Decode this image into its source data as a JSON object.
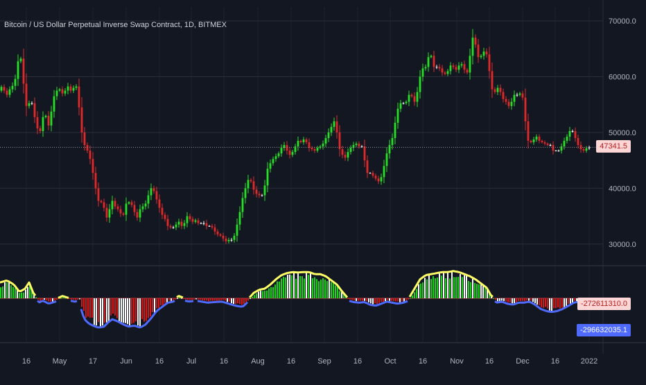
{
  "header": {
    "symbol_title": "Bitcoin / US Dollar Perpetual Inverse Swap Contract, 1D, BITMEX"
  },
  "colors": {
    "background": "#131722",
    "grid": "#2a2e39",
    "text": "#b2b5be",
    "candle_up": "#26e026",
    "candle_down": "#e02a2a",
    "candle_neutral": "#ffffff",
    "osc_upper_line": "#ffff66",
    "osc_lower_line": "#4f6bff",
    "osc_bar_pos": "#19d419",
    "osc_bar_neg": "#d41919",
    "osc_bar_light": "#ffffff",
    "current_price_line": "#9598a1",
    "current_price_label_bg": "#ffd6d6",
    "current_price_label_text": "#b71c1c",
    "osc_label_1_bg": "#ffd6d6",
    "osc_label_1_text": "#b71c1c",
    "osc_label_2_bg": "#4f6bff",
    "osc_label_2_text": "#ffffff"
  },
  "chart_data": {
    "type": "candlestick",
    "title": "Bitcoin / US Dollar Perpetual Inverse Swap Contract, 1D, BITMEX",
    "x_ticks": [
      "16",
      "May",
      "17",
      "Jun",
      "16",
      "Jul",
      "16",
      "Aug",
      "16",
      "Sep",
      "16",
      "Oct",
      "16",
      "Nov",
      "16",
      "Dec",
      "16",
      "2022"
    ],
    "y_ticks": [
      70000,
      60000,
      50000,
      40000,
      30000
    ],
    "y_tick_labels": [
      "70000.0",
      "60000.0",
      "50000.0",
      "40000.0",
      "30000.0"
    ],
    "ylim": [
      26500,
      72500
    ],
    "current_price": 47341.5,
    "current_price_label": "47341.5",
    "price_anchors": [
      [
        0,
        57500
      ],
      [
        3,
        58000
      ],
      [
        6,
        58500
      ],
      [
        10,
        56500
      ],
      [
        14,
        57000
      ],
      [
        18,
        58500
      ],
      [
        22,
        58200
      ],
      [
        26,
        61000
      ],
      [
        30,
        64500
      ],
      [
        34,
        62000
      ],
      [
        38,
        55500
      ],
      [
        42,
        54000
      ],
      [
        46,
        56500
      ],
      [
        50,
        54000
      ],
      [
        54,
        51500
      ],
      [
        58,
        50000
      ],
      [
        62,
        50500
      ],
      [
        66,
        55000
      ],
      [
        70,
        51000
      ],
      [
        74,
        51500
      ],
      [
        78,
        56000
      ],
      [
        82,
        57000
      ],
      [
        86,
        58000
      ],
      [
        90,
        57500
      ],
      [
        94,
        56500
      ],
      [
        98,
        58500
      ],
      [
        102,
        58000
      ],
      [
        106,
        57000
      ],
      [
        110,
        59000
      ],
      [
        114,
        57500
      ],
      [
        118,
        51500
      ],
      [
        122,
        48500
      ],
      [
        126,
        47000
      ],
      [
        130,
        46500
      ],
      [
        134,
        44000
      ],
      [
        138,
        41500
      ],
      [
        142,
        38500
      ],
      [
        146,
        37000
      ],
      [
        150,
        38000
      ],
      [
        154,
        35000
      ],
      [
        158,
        34500
      ],
      [
        162,
        38000
      ],
      [
        166,
        37500
      ],
      [
        170,
        36000
      ],
      [
        174,
        36500
      ],
      [
        178,
        34500
      ],
      [
        182,
        36000
      ],
      [
        186,
        38500
      ],
      [
        190,
        36500
      ],
      [
        194,
        37500
      ],
      [
        198,
        34000
      ],
      [
        202,
        35500
      ],
      [
        206,
        37000
      ],
      [
        210,
        36500
      ],
      [
        214,
        38000
      ],
      [
        218,
        39500
      ],
      [
        222,
        40500
      ],
      [
        226,
        38500
      ],
      [
        230,
        37500
      ],
      [
        234,
        35500
      ],
      [
        238,
        35000
      ],
      [
        242,
        34000
      ],
      [
        246,
        32500
      ],
      [
        250,
        33500
      ],
      [
        254,
        32500
      ],
      [
        258,
        34500
      ],
      [
        262,
        33500
      ],
      [
        266,
        33000
      ],
      [
        270,
        34500
      ],
      [
        274,
        35500
      ],
      [
        278,
        33500
      ],
      [
        282,
        34500
      ],
      [
        286,
        34000
      ],
      [
        290,
        33500
      ],
      [
        294,
        34000
      ],
      [
        298,
        33500
      ],
      [
        302,
        33000
      ],
      [
        306,
        33500
      ],
      [
        310,
        32500
      ],
      [
        314,
        32000
      ],
      [
        318,
        31500
      ],
      [
        322,
        31500
      ],
      [
        326,
        30500
      ],
      [
        330,
        30500
      ],
      [
        334,
        31000
      ],
      [
        338,
        30500
      ],
      [
        342,
        32500
      ],
      [
        346,
        34500
      ],
      [
        350,
        37000
      ],
      [
        354,
        39500
      ],
      [
        358,
        40500
      ],
      [
        362,
        42500
      ],
      [
        366,
        40000
      ],
      [
        370,
        39500
      ],
      [
        374,
        38500
      ],
      [
        378,
        39000
      ],
      [
        382,
        38500
      ],
      [
        386,
        42500
      ],
      [
        390,
        44500
      ],
      [
        394,
        44500
      ],
      [
        398,
        46000
      ],
      [
        402,
        45500
      ],
      [
        406,
        47000
      ],
      [
        410,
        47500
      ],
      [
        414,
        48000
      ],
      [
        418,
        45500
      ],
      [
        422,
        46500
      ],
      [
        426,
        46500
      ],
      [
        430,
        48500
      ],
      [
        434,
        48500
      ],
      [
        438,
        48000
      ],
      [
        442,
        49500
      ],
      [
        446,
        47000
      ],
      [
        450,
        47500
      ],
      [
        454,
        46500
      ],
      [
        458,
        47000
      ],
      [
        462,
        47500
      ],
      [
        466,
        47500
      ],
      [
        470,
        48500
      ],
      [
        474,
        49500
      ],
      [
        478,
        50500
      ],
      [
        482,
        51500
      ],
      [
        486,
        52500
      ],
      [
        490,
        47500
      ],
      [
        494,
        46500
      ],
      [
        498,
        45500
      ],
      [
        502,
        45500
      ],
      [
        506,
        47500
      ],
      [
        510,
        47000
      ],
      [
        514,
        48500
      ],
      [
        518,
        47500
      ],
      [
        522,
        47500
      ],
      [
        526,
        47500
      ],
      [
        530,
        42500
      ],
      [
        534,
        43000
      ],
      [
        538,
        42500
      ],
      [
        542,
        42000
      ],
      [
        546,
        41500
      ],
      [
        550,
        41000
      ],
      [
        554,
        43000
      ],
      [
        558,
        45000
      ],
      [
        562,
        47500
      ],
      [
        566,
        48000
      ],
      [
        570,
        50000
      ],
      [
        574,
        53500
      ],
      [
        578,
        55000
      ],
      [
        582,
        55500
      ],
      [
        586,
        55000
      ],
      [
        590,
        56000
      ],
      [
        594,
        57500
      ],
      [
        598,
        55500
      ],
      [
        602,
        55500
      ],
      [
        606,
        59000
      ],
      [
        610,
        61000
      ],
      [
        614,
        62000
      ],
      [
        618,
        61500
      ],
      [
        622,
        65500
      ],
      [
        626,
        62000
      ],
      [
        630,
        61500
      ],
      [
        634,
        62000
      ],
      [
        638,
        61000
      ],
      [
        642,
        60500
      ],
      [
        646,
        60500
      ],
      [
        650,
        61500
      ],
      [
        654,
        62500
      ],
      [
        658,
        61000
      ],
      [
        662,
        61500
      ],
      [
        666,
        62500
      ],
      [
        670,
        62000
      ],
      [
        674,
        60500
      ],
      [
        678,
        61000
      ],
      [
        682,
        66500
      ],
      [
        686,
        67500
      ],
      [
        690,
        64000
      ],
      [
        694,
        63000
      ],
      [
        698,
        64500
      ],
      [
        702,
        64500
      ],
      [
        706,
        63500
      ],
      [
        710,
        58500
      ],
      [
        714,
        57000
      ],
      [
        718,
        57500
      ],
      [
        722,
        58500
      ],
      [
        726,
        56000
      ],
      [
        730,
        56000
      ],
      [
        734,
        55000
      ],
      [
        738,
        54500
      ],
      [
        742,
        56500
      ],
      [
        746,
        57000
      ],
      [
        750,
        56500
      ],
      [
        754,
        57500
      ],
      [
        758,
        55000
      ],
      [
        762,
        49000
      ],
      [
        766,
        48000
      ],
      [
        770,
        48500
      ],
      [
        774,
        49000
      ],
      [
        778,
        49500
      ],
      [
        782,
        47500
      ],
      [
        786,
        49000
      ],
      [
        790,
        47000
      ],
      [
        794,
        48500
      ],
      [
        798,
        47000
      ],
      [
        802,
        46500
      ],
      [
        806,
        47000
      ],
      [
        810,
        46500
      ],
      [
        814,
        48500
      ],
      [
        818,
        48500
      ],
      [
        822,
        50000
      ],
      [
        826,
        50500
      ],
      [
        830,
        50000
      ],
      [
        834,
        48000
      ],
      [
        838,
        47500
      ],
      [
        842,
        46500
      ],
      [
        846,
        47000
      ],
      [
        850,
        47341.5
      ]
    ],
    "indicator": {
      "type": "oscillator",
      "labels": [
        "-272611310.0",
        "-296632035.1"
      ],
      "osc_anchors": [
        [
          0,
          0.7
        ],
        [
          10,
          0.8
        ],
        [
          20,
          0.6
        ],
        [
          28,
          0.25
        ],
        [
          36,
          0.4
        ],
        [
          42,
          0.7
        ],
        [
          48,
          0.2
        ],
        [
          56,
          -0.15
        ],
        [
          62,
          -0.05
        ],
        [
          70,
          -0.2
        ],
        [
          80,
          -0.1
        ],
        [
          90,
          0.05
        ],
        [
          100,
          -0.05
        ],
        [
          108,
          -0.1
        ],
        [
          114,
          -0.05
        ],
        [
          118,
          -0.6
        ],
        [
          122,
          -0.95
        ],
        [
          128,
          -1.15
        ],
        [
          134,
          -1.25
        ],
        [
          142,
          -1.35
        ],
        [
          150,
          -1.3
        ],
        [
          156,
          -1.1
        ],
        [
          162,
          -0.95
        ],
        [
          170,
          -1.05
        ],
        [
          178,
          -1.2
        ],
        [
          186,
          -1.3
        ],
        [
          194,
          -1.25
        ],
        [
          202,
          -1.35
        ],
        [
          210,
          -1.2
        ],
        [
          218,
          -0.9
        ],
        [
          226,
          -0.55
        ],
        [
          234,
          -0.35
        ],
        [
          242,
          -0.15
        ],
        [
          250,
          -0.1
        ],
        [
          258,
          0.05
        ],
        [
          266,
          -0.05
        ],
        [
          274,
          -0.1
        ],
        [
          282,
          -0.05
        ],
        [
          290,
          -0.1
        ],
        [
          300,
          -0.15
        ],
        [
          310,
          -0.12
        ],
        [
          320,
          -0.1
        ],
        [
          330,
          -0.2
        ],
        [
          340,
          -0.3
        ],
        [
          350,
          -0.35
        ],
        [
          358,
          -0.1
        ],
        [
          366,
          0.2
        ],
        [
          374,
          0.35
        ],
        [
          382,
          0.4
        ],
        [
          390,
          0.6
        ],
        [
          398,
          0.85
        ],
        [
          406,
          1.05
        ],
        [
          414,
          1.15
        ],
        [
          422,
          1.2
        ],
        [
          430,
          1.18
        ],
        [
          438,
          1.2
        ],
        [
          446,
          1.2
        ],
        [
          454,
          1.1
        ],
        [
          462,
          1.1
        ],
        [
          470,
          1.0
        ],
        [
          478,
          0.8
        ],
        [
          486,
          0.6
        ],
        [
          494,
          0.25
        ],
        [
          502,
          -0.05
        ],
        [
          510,
          -0.12
        ],
        [
          518,
          -0.15
        ],
        [
          526,
          -0.12
        ],
        [
          534,
          -0.25
        ],
        [
          542,
          -0.3
        ],
        [
          550,
          -0.2
        ],
        [
          558,
          -0.1
        ],
        [
          566,
          -0.15
        ],
        [
          574,
          -0.2
        ],
        [
          582,
          -0.15
        ],
        [
          590,
          -0.05
        ],
        [
          598,
          0.4
        ],
        [
          606,
          0.85
        ],
        [
          614,
          1.05
        ],
        [
          622,
          1.1
        ],
        [
          630,
          1.15
        ],
        [
          638,
          1.2
        ],
        [
          646,
          1.2
        ],
        [
          654,
          1.25
        ],
        [
          662,
          1.2
        ],
        [
          670,
          1.1
        ],
        [
          678,
          1.0
        ],
        [
          686,
          0.85
        ],
        [
          694,
          0.65
        ],
        [
          702,
          0.45
        ],
        [
          708,
          0.1
        ],
        [
          716,
          -0.15
        ],
        [
          724,
          -0.1
        ],
        [
          732,
          -0.2
        ],
        [
          740,
          -0.25
        ],
        [
          748,
          -0.15
        ],
        [
          756,
          -0.15
        ],
        [
          764,
          -0.1
        ],
        [
          772,
          -0.25
        ],
        [
          780,
          -0.45
        ],
        [
          788,
          -0.55
        ],
        [
          796,
          -0.6
        ],
        [
          804,
          -0.55
        ],
        [
          812,
          -0.45
        ],
        [
          820,
          -0.3
        ],
        [
          828,
          -0.15
        ],
        [
          836,
          -0.1
        ],
        [
          844,
          -0.15
        ],
        [
          850,
          -0.3
        ]
      ]
    }
  }
}
